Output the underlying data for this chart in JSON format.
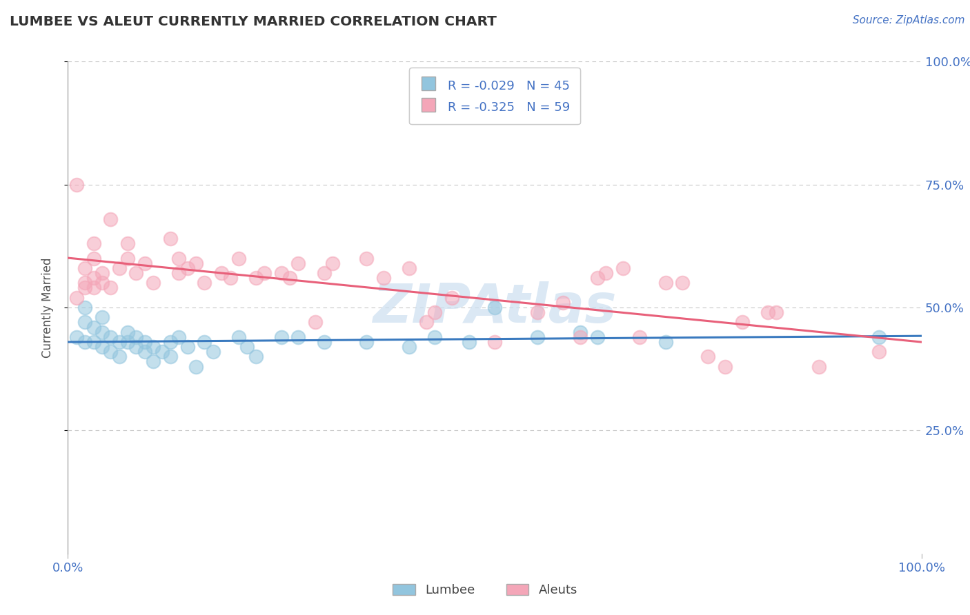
{
  "title": "LUMBEE VS ALEUT CURRENTLY MARRIED CORRELATION CHART",
  "source_text": "Source: ZipAtlas.com",
  "ylabel": "Currently Married",
  "legend_r_n": [
    {
      "R": -0.029,
      "N": 45,
      "color": "#92c5de"
    },
    {
      "R": -0.325,
      "N": 59,
      "color": "#f4a6b8"
    }
  ],
  "xlim": [
    0.0,
    1.0
  ],
  "ylim": [
    0.0,
    1.0
  ],
  "xtick_labels": [
    "0.0%",
    "100.0%"
  ],
  "ytick_labels": [
    "25.0%",
    "50.0%",
    "75.0%",
    "100.0%"
  ],
  "ytick_positions": [
    0.25,
    0.5,
    0.75,
    1.0
  ],
  "background_color": "#ffffff",
  "grid_color": "#c8c8c8",
  "lumbee_color": "#92c5de",
  "aleut_color": "#f4a6b8",
  "lumbee_line_color": "#3a7abf",
  "aleut_line_color": "#e8607a",
  "lumbee_scatter": [
    [
      0.01,
      0.44
    ],
    [
      0.02,
      0.47
    ],
    [
      0.02,
      0.5
    ],
    [
      0.02,
      0.43
    ],
    [
      0.03,
      0.46
    ],
    [
      0.03,
      0.43
    ],
    [
      0.04,
      0.45
    ],
    [
      0.04,
      0.48
    ],
    [
      0.04,
      0.42
    ],
    [
      0.05,
      0.44
    ],
    [
      0.05,
      0.41
    ],
    [
      0.06,
      0.43
    ],
    [
      0.06,
      0.4
    ],
    [
      0.07,
      0.45
    ],
    [
      0.07,
      0.43
    ],
    [
      0.08,
      0.42
    ],
    [
      0.08,
      0.44
    ],
    [
      0.09,
      0.41
    ],
    [
      0.09,
      0.43
    ],
    [
      0.1,
      0.42
    ],
    [
      0.1,
      0.39
    ],
    [
      0.11,
      0.41
    ],
    [
      0.12,
      0.43
    ],
    [
      0.12,
      0.4
    ],
    [
      0.13,
      0.44
    ],
    [
      0.14,
      0.42
    ],
    [
      0.15,
      0.38
    ],
    [
      0.16,
      0.43
    ],
    [
      0.17,
      0.41
    ],
    [
      0.2,
      0.44
    ],
    [
      0.21,
      0.42
    ],
    [
      0.22,
      0.4
    ],
    [
      0.25,
      0.44
    ],
    [
      0.27,
      0.44
    ],
    [
      0.3,
      0.43
    ],
    [
      0.35,
      0.43
    ],
    [
      0.4,
      0.42
    ],
    [
      0.43,
      0.44
    ],
    [
      0.47,
      0.43
    ],
    [
      0.5,
      0.5
    ],
    [
      0.55,
      0.44
    ],
    [
      0.6,
      0.45
    ],
    [
      0.62,
      0.44
    ],
    [
      0.7,
      0.43
    ],
    [
      0.95,
      0.44
    ]
  ],
  "aleut_scatter": [
    [
      0.01,
      0.75
    ],
    [
      0.01,
      0.52
    ],
    [
      0.02,
      0.55
    ],
    [
      0.02,
      0.54
    ],
    [
      0.02,
      0.58
    ],
    [
      0.03,
      0.56
    ],
    [
      0.03,
      0.54
    ],
    [
      0.03,
      0.6
    ],
    [
      0.03,
      0.63
    ],
    [
      0.04,
      0.57
    ],
    [
      0.04,
      0.55
    ],
    [
      0.05,
      0.54
    ],
    [
      0.05,
      0.68
    ],
    [
      0.06,
      0.58
    ],
    [
      0.07,
      0.6
    ],
    [
      0.07,
      0.63
    ],
    [
      0.08,
      0.57
    ],
    [
      0.09,
      0.59
    ],
    [
      0.1,
      0.55
    ],
    [
      0.12,
      0.64
    ],
    [
      0.13,
      0.6
    ],
    [
      0.13,
      0.57
    ],
    [
      0.14,
      0.58
    ],
    [
      0.15,
      0.59
    ],
    [
      0.16,
      0.55
    ],
    [
      0.18,
      0.57
    ],
    [
      0.19,
      0.56
    ],
    [
      0.2,
      0.6
    ],
    [
      0.22,
      0.56
    ],
    [
      0.23,
      0.57
    ],
    [
      0.25,
      0.57
    ],
    [
      0.26,
      0.56
    ],
    [
      0.27,
      0.59
    ],
    [
      0.29,
      0.47
    ],
    [
      0.3,
      0.57
    ],
    [
      0.31,
      0.59
    ],
    [
      0.35,
      0.6
    ],
    [
      0.37,
      0.56
    ],
    [
      0.4,
      0.58
    ],
    [
      0.42,
      0.47
    ],
    [
      0.43,
      0.49
    ],
    [
      0.45,
      0.52
    ],
    [
      0.5,
      0.43
    ],
    [
      0.55,
      0.49
    ],
    [
      0.58,
      0.51
    ],
    [
      0.6,
      0.44
    ],
    [
      0.62,
      0.56
    ],
    [
      0.63,
      0.57
    ],
    [
      0.65,
      0.58
    ],
    [
      0.67,
      0.44
    ],
    [
      0.7,
      0.55
    ],
    [
      0.72,
      0.55
    ],
    [
      0.75,
      0.4
    ],
    [
      0.77,
      0.38
    ],
    [
      0.79,
      0.47
    ],
    [
      0.82,
      0.49
    ],
    [
      0.83,
      0.49
    ],
    [
      0.88,
      0.38
    ],
    [
      0.95,
      0.41
    ]
  ]
}
